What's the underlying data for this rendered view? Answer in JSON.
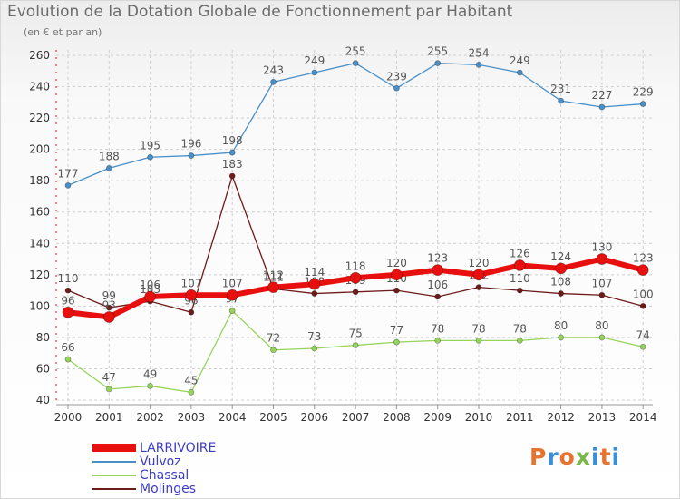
{
  "header": {
    "title": "Evolution de la Dotation Globale de Fonctionnement par Habitant",
    "subtitle": "(en € et par an)"
  },
  "logo": {
    "text": "Proxiti",
    "colors": [
      "#e6742f",
      "#3b8ed6",
      "#e6742f",
      "#7ab648",
      "#3b8ed6",
      "#e6742f",
      "#3b8ed6"
    ]
  },
  "colors": {
    "LARRIVOIRE": "#e8100f",
    "Vulvoz": "#4a90c8",
    "Chassal": "#96d45a",
    "Molinges": "#6e1b1b",
    "grid": "#d0d0d0",
    "axis_text": "#333333",
    "label_text": "#555555",
    "legend_text": "#3c3cc8"
  },
  "chart_data": {
    "type": "line",
    "title": "Evolution de la Dotation Globale de Fonctionnement par Habitant",
    "subtitle": "(en € et par an)",
    "xlabel": "",
    "ylabel": "",
    "ylim": [
      40,
      260
    ],
    "yticks": [
      40,
      60,
      80,
      100,
      120,
      140,
      160,
      180,
      200,
      220,
      240,
      260
    ],
    "grid": true,
    "legend_position": "bottom-left",
    "categories": [
      "2000",
      "2001",
      "2002",
      "2003",
      "2004",
      "2005",
      "2006",
      "2007",
      "2008",
      "2009",
      "2010",
      "2011",
      "2012",
      "2013",
      "2014"
    ],
    "series": [
      {
        "name": "Vulvoz",
        "values": [
          177,
          188,
          195,
          196,
          198,
          243,
          249,
          255,
          239,
          255,
          254,
          249,
          231,
          227,
          229
        ]
      },
      {
        "name": "Chassal",
        "values": [
          66,
          47,
          49,
          45,
          97,
          72,
          73,
          75,
          77,
          78,
          78,
          78,
          80,
          80,
          74
        ]
      },
      {
        "name": "Molinges",
        "values": [
          110,
          99,
          103,
          96,
          183,
          111,
          108,
          109,
          110,
          106,
          112,
          110,
          108,
          107,
          100
        ]
      },
      {
        "name": "LARRIVOIRE",
        "values": [
          96,
          93,
          106,
          107,
          107,
          112,
          114,
          118,
          120,
          123,
          120,
          126,
          124,
          130,
          123
        ]
      }
    ]
  },
  "legend": [
    {
      "name": "LARRIVOIRE",
      "key": "LARRIVOIRE"
    },
    {
      "name": "Vulvoz",
      "key": "Vulvoz"
    },
    {
      "name": "Chassal",
      "key": "Chassal"
    },
    {
      "name": "Molinges",
      "key": "Molinges"
    }
  ]
}
